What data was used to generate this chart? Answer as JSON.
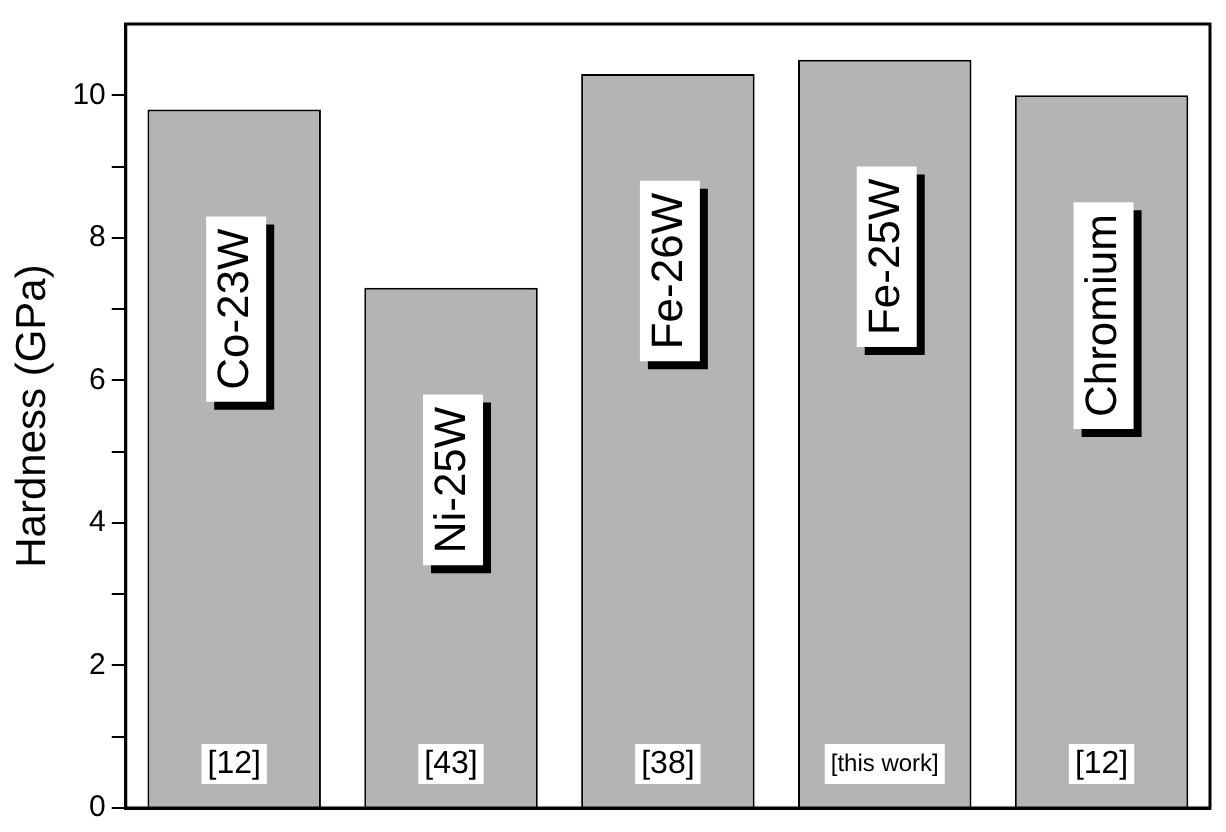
{
  "chart_data": {
    "type": "bar",
    "ylabel": "Hardness (GPa)",
    "categories": [
      "Co-23W",
      "Ni-25W",
      "Fe-26W",
      "Fe-25W",
      "Chromium"
    ],
    "values": [
      9.8,
      7.3,
      10.3,
      10.5,
      10.0
    ],
    "color": "#b4b4b4",
    "ylim": [
      0,
      11
    ],
    "yticks": [
      0,
      {
        "value": 1,
        "label": null
      },
      2,
      {
        "value": 3,
        "label": null
      },
      4,
      {
        "value": 5,
        "label": null
      },
      6,
      {
        "value": 7,
        "label": null
      },
      8,
      {
        "value": 9,
        "label": null
      },
      10
    ],
    "grid": false,
    "legend": false,
    "tick_labels": "y",
    "annotations": [
      "[12]",
      "[43]",
      "[38]",
      "[this work]",
      "[12]"
    ]
  }
}
